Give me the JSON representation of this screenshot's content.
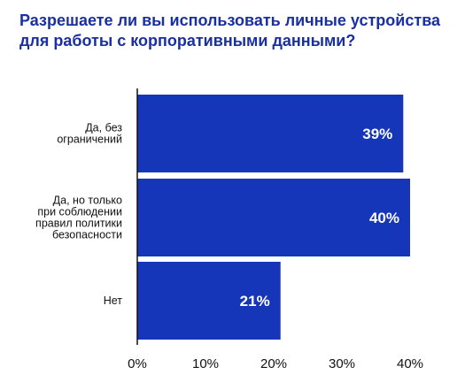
{
  "chart_data": {
    "type": "bar",
    "orientation": "horizontal",
    "title": "Разрешаете ли вы использовать личные устройства для работы с корпоративными данными?",
    "categories": [
      "Да, без ограничений",
      "Да, но только при соблюдении правил политики безопасности",
      "Нет"
    ],
    "category_lines": [
      [
        "Да, без",
        "ограничений"
      ],
      [
        "Да, но только",
        "при соблюдении",
        "правил политики",
        "безопасности"
      ],
      [
        "Нет"
      ]
    ],
    "values": [
      39,
      40,
      21
    ],
    "value_labels": [
      "39%",
      "40%",
      "21%"
    ],
    "xlim": [
      0,
      40
    ],
    "xticks": [
      0,
      10,
      20,
      30,
      40
    ],
    "xtick_labels": [
      "0%",
      "10%",
      "20%",
      "30%",
      "40%"
    ],
    "grid": false,
    "bar_color": "#1536b8",
    "title_color": "#1a2fa0"
  }
}
